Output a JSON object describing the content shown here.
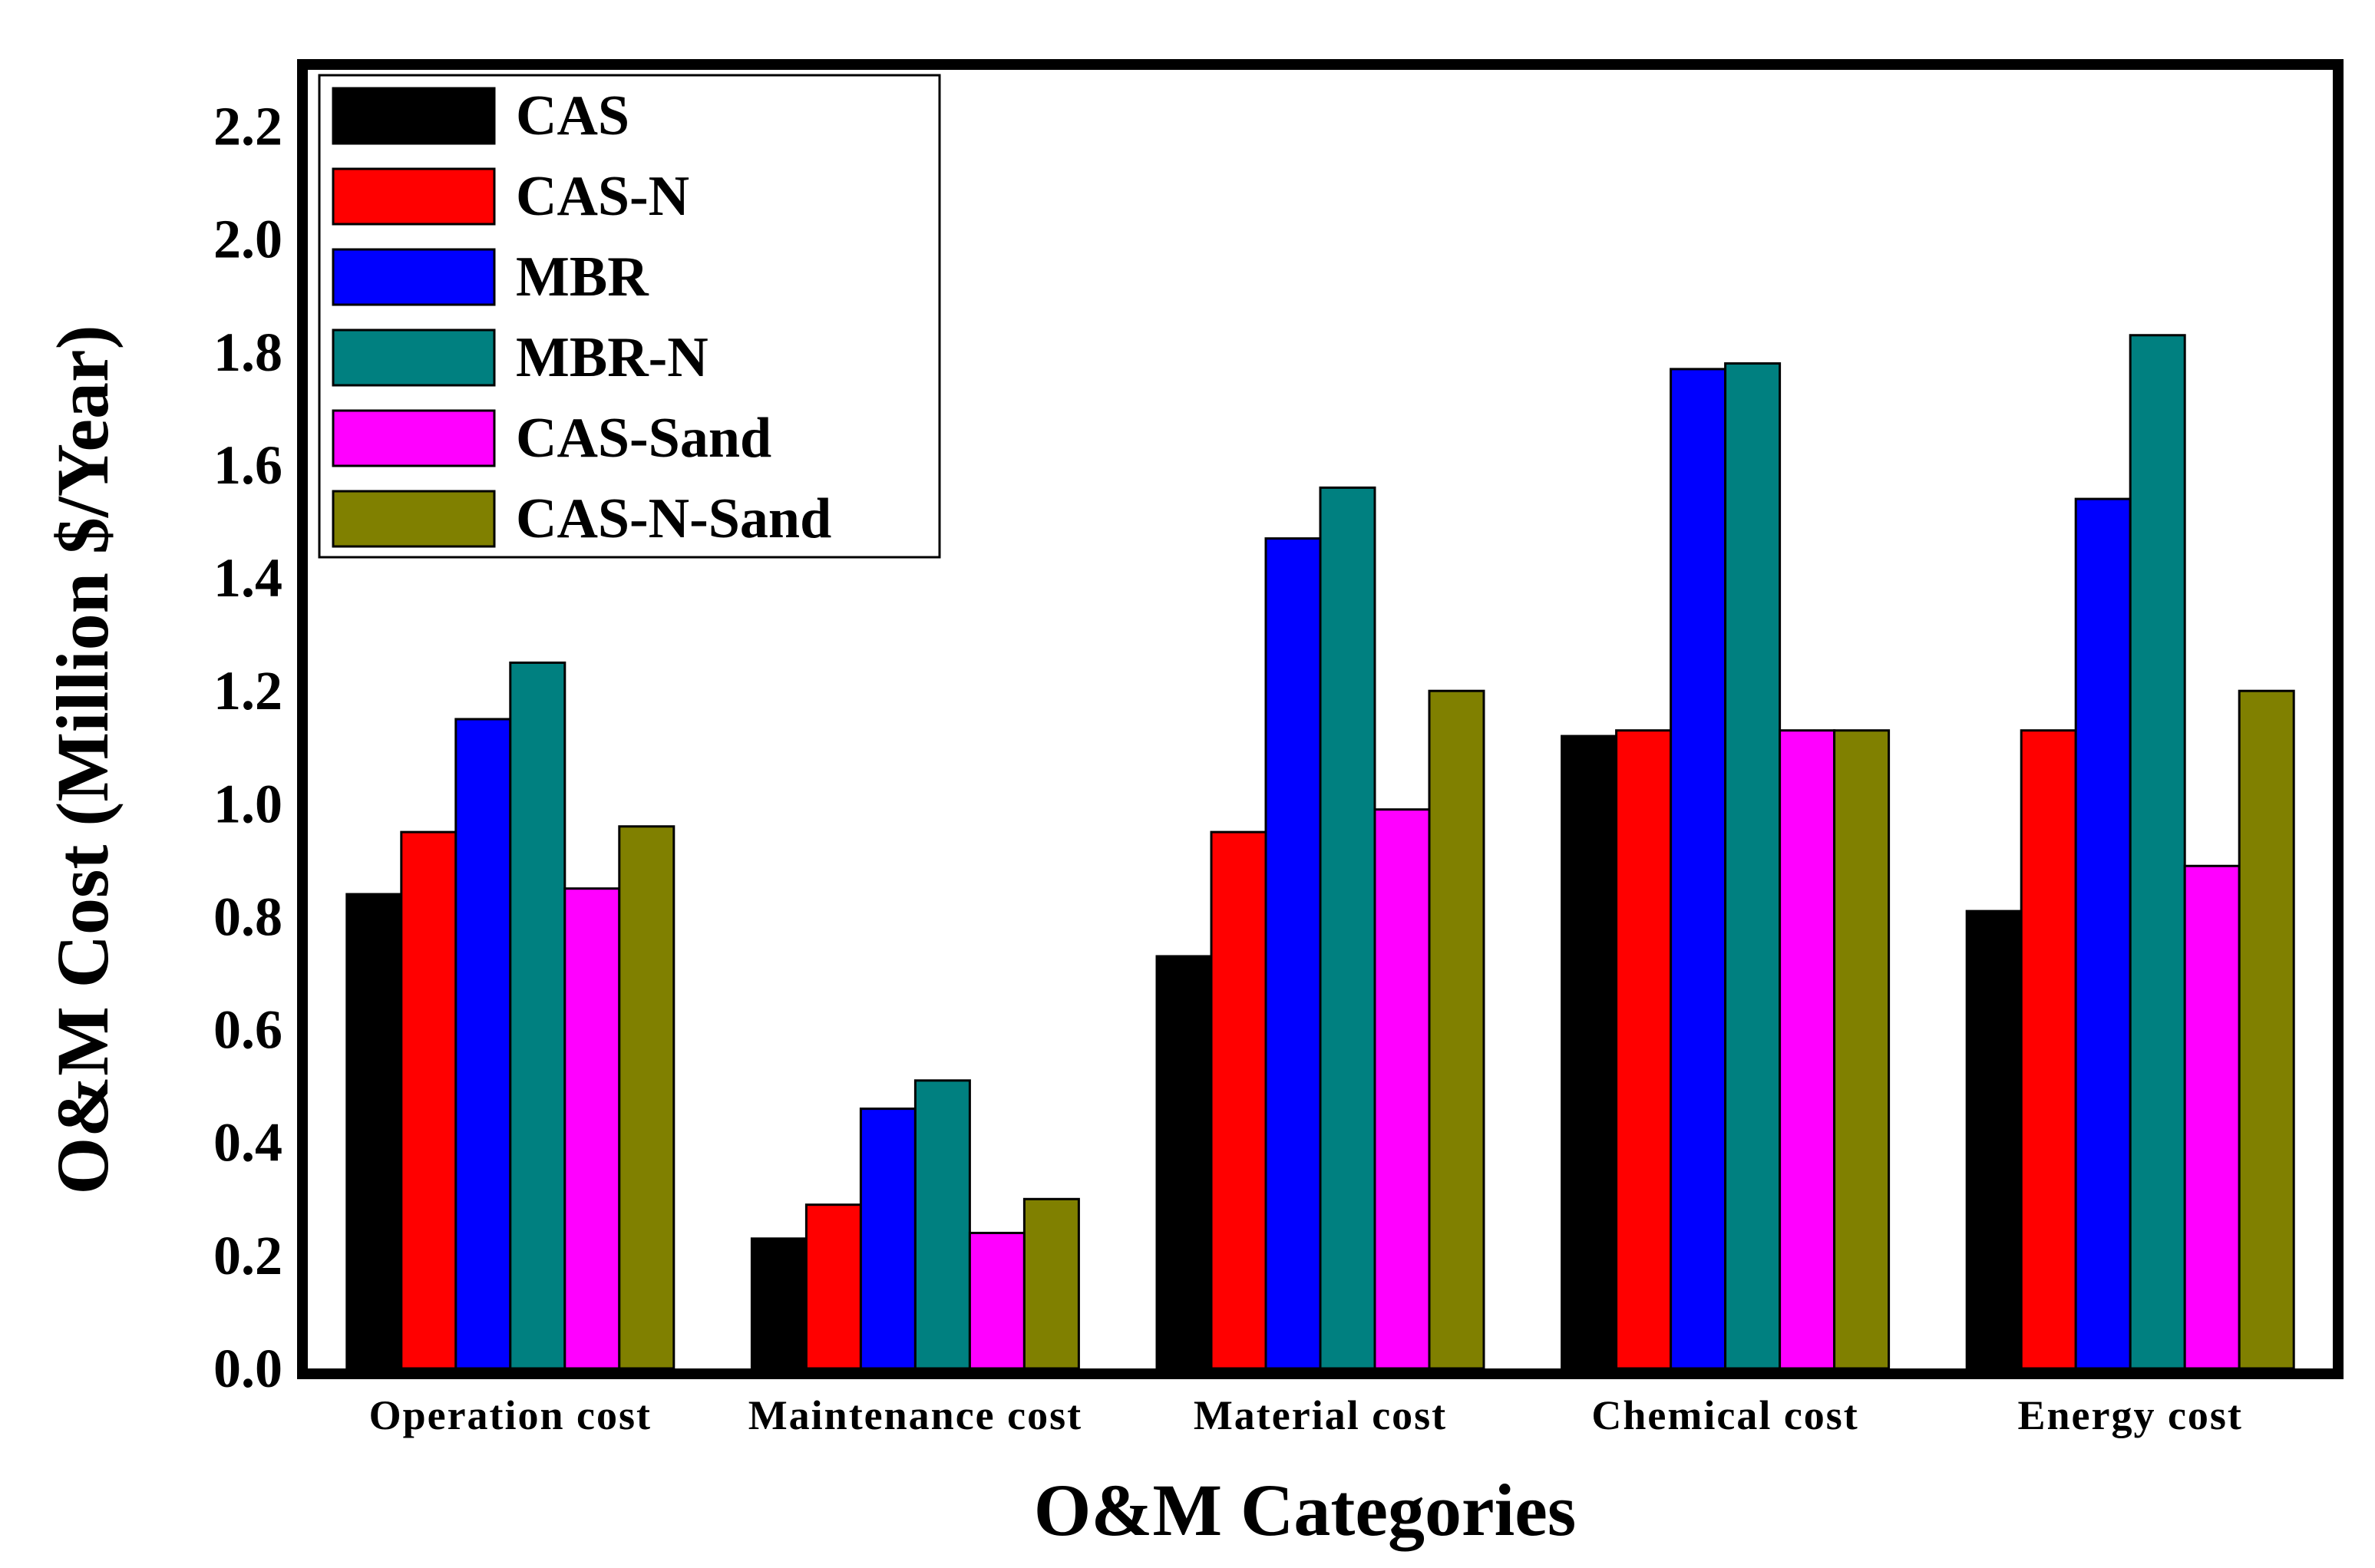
{
  "chart_data": {
    "type": "bar",
    "xlabel": "O&M Categories",
    "ylabel": "O&M Cost (Million $/Year)",
    "ylim": [
      0,
      2.3
    ],
    "yticks": [
      "0.0",
      "0.2",
      "0.4",
      "0.6",
      "0.8",
      "1.0",
      "1.2",
      "1.4",
      "1.6",
      "1.8",
      "2.0",
      "2.2"
    ],
    "grid": false,
    "legend_position": "top-left",
    "categories": [
      "Operation cost",
      "Maintenance cost",
      "Material cost",
      "Chemical cost",
      "Energy cost"
    ],
    "series": [
      {
        "name": "CAS",
        "color": "#000000",
        "values": [
          0.84,
          0.23,
          0.73,
          1.12,
          0.81
        ]
      },
      {
        "name": "CAS-N",
        "color": "#ff0000",
        "values": [
          0.95,
          0.29,
          0.95,
          1.13,
          1.13
        ]
      },
      {
        "name": "MBR",
        "color": "#0000ff",
        "values": [
          1.15,
          0.46,
          1.47,
          1.77,
          1.54
        ]
      },
      {
        "name": "MBR-N",
        "color": "#008080",
        "values": [
          1.25,
          0.51,
          1.56,
          1.78,
          1.83
        ]
      },
      {
        "name": "CAS-Sand",
        "color": "#ff00ff",
        "values": [
          0.85,
          0.24,
          0.99,
          1.13,
          0.89
        ]
      },
      {
        "name": "CAS-N-Sand",
        "color": "#808000",
        "values": [
          0.96,
          0.3,
          1.2,
          1.13,
          1.2
        ]
      }
    ]
  }
}
